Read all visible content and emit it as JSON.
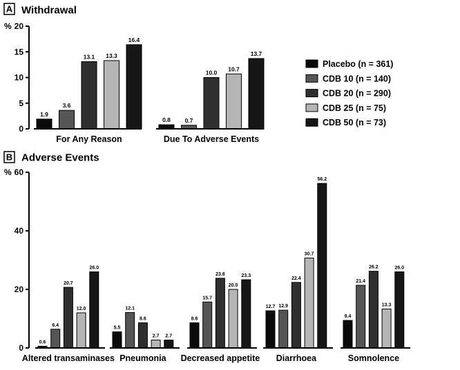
{
  "chart_data": [
    {
      "type": "bar",
      "panel_letter": "A",
      "title": "Withdrawal",
      "ylabel": "%",
      "ylim": [
        0,
        20
      ],
      "yticks": [
        "0",
        "5",
        "10",
        "15",
        "20"
      ],
      "categories": [
        "For Any Reason",
        "Due To Adverse Events"
      ],
      "series": [
        {
          "name": "Placebo (n = 361)",
          "values": [
            1.9,
            0.8
          ],
          "labels": [
            "1.9",
            "0.8"
          ],
          "color": "#0a0a0a"
        },
        {
          "name": "CDB 10 (n = 140)",
          "values": [
            3.6,
            0.7
          ],
          "labels": [
            "3.6",
            "0.7"
          ],
          "color": "#555555"
        },
        {
          "name": "CDB 20 (n = 290)",
          "values": [
            13.1,
            10.0
          ],
          "labels": [
            "13.1",
            "10.0"
          ],
          "color": "#2f2f2f"
        },
        {
          "name": "CDB 25 (n = 75)",
          "values": [
            13.3,
            10.7
          ],
          "labels": [
            "13.3",
            "10.7"
          ],
          "color": "#b5b5b5"
        },
        {
          "name": "CDB 50 (n = 73)",
          "values": [
            16.4,
            13.7
          ],
          "labels": [
            "16.4",
            "13.7"
          ],
          "color": "#161616"
        }
      ],
      "legend_position": "right"
    },
    {
      "type": "bar",
      "panel_letter": "B",
      "title": "Adverse Events",
      "ylabel": "%",
      "ylim": [
        0,
        60
      ],
      "yticks": [
        "0",
        "20",
        "40",
        "60"
      ],
      "categories": [
        "Altered transaminases",
        "Pneumonia",
        "Decreased appetite",
        "Diarrhoea",
        "Somnolence"
      ],
      "series": [
        {
          "name": "Placebo (n = 361)",
          "values": [
            0.6,
            5.5,
            8.6,
            12.7,
            9.4
          ],
          "labels": [
            "0.6",
            "5.5",
            "8.6",
            "12.7",
            "9.4"
          ],
          "color": "#0a0a0a"
        },
        {
          "name": "CDB 10 (n = 140)",
          "values": [
            6.4,
            12.1,
            15.7,
            12.9,
            21.4
          ],
          "labels": [
            "6.4",
            "12.1",
            "15.7",
            "12.9",
            "21.4"
          ],
          "color": "#555555"
        },
        {
          "name": "CDB 20 (n = 290)",
          "values": [
            20.7,
            8.6,
            23.8,
            22.4,
            26.2
          ],
          "labels": [
            "20.7",
            "8.6",
            "23.8",
            "22.4",
            "26.2"
          ],
          "color": "#2f2f2f"
        },
        {
          "name": "CDB 25 (n = 75)",
          "values": [
            12.0,
            2.7,
            20.0,
            30.7,
            13.3
          ],
          "labels": [
            "12.0",
            "2.7",
            "20.0",
            "30.7",
            "13.3"
          ],
          "color": "#b5b5b5"
        },
        {
          "name": "CDB 50 (n = 73)",
          "values": [
            26.0,
            2.7,
            23.3,
            56.2,
            26.0
          ],
          "labels": [
            "26.0",
            "2.7",
            "23.3",
            "56.2",
            "26.0"
          ],
          "color": "#161616"
        }
      ]
    }
  ]
}
